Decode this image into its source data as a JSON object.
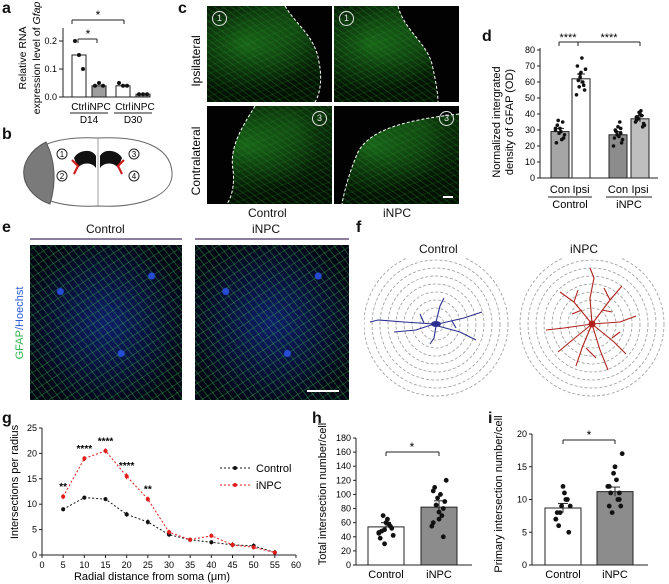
{
  "panel_letters": {
    "a": "a",
    "b": "b",
    "c": "c",
    "d": "d",
    "e": "e",
    "f": "f",
    "g": "g",
    "h": "h",
    "i": "i"
  },
  "panel_a": {
    "ylabel_line1": "Relative RNA",
    "ylabel_line2": "expression level of",
    "ylabel_gene": "Gfap",
    "group_labels": [
      "Ctrl",
      "iNPC",
      "Ctrl",
      "iNPC"
    ],
    "day_labels": [
      "D14",
      "D30"
    ],
    "tick_labels": [
      "0.0",
      "0.1",
      "0.2"
    ],
    "sig_marks": [
      "*",
      "*"
    ],
    "colors": {
      "ctrl": "#ffffff",
      "inpc": "#9e9e9e"
    }
  },
  "panel_b": {
    "region_numbers": [
      "1",
      "2",
      "3",
      "4"
    ]
  },
  "panel_c": {
    "row_labels": [
      "Ipsilateral",
      "Contralateral"
    ],
    "col_labels": [
      "Control",
      "iNPC"
    ],
    "region_numbers": [
      "1",
      "1",
      "3",
      "3"
    ]
  },
  "panel_d": {
    "ylabel_line1": "Normalized intergrated",
    "ylabel_line2": "density of GFAP (OD)",
    "ticks": [
      "0",
      "10",
      "20",
      "30",
      "40",
      "50",
      "60",
      "70",
      "80"
    ],
    "bar_labels": [
      "Con",
      "Ipsi",
      "Con",
      "Ipsi"
    ],
    "group_labels": [
      "Control",
      "iNPC"
    ],
    "sig_marks": [
      "****",
      "****"
    ],
    "colors": {
      "control_con": "#a6a6a6",
      "control_ipsi": "#ffffff",
      "inpc_con": "#8c8c8c",
      "inpc_ipsi": "#bfbfbf"
    }
  },
  "panel_e": {
    "ylabel_gfap": "GFAP",
    "ylabel_hoechst": "/Hoechst",
    "col_labels": [
      "Control",
      "iNPC"
    ],
    "colors": {
      "gfap": "#2fb34a",
      "hoechst": "#2a5bd7"
    }
  },
  "panel_f": {
    "col_labels": [
      "Control",
      "iNPC"
    ],
    "colors": {
      "control": "#2b2f8f",
      "inpc": "#b0221c"
    }
  },
  "panel_g": {
    "ylabel": "Intersections per radius",
    "xlabel": "Radial distance from soma (μm)",
    "legend": [
      "Control",
      "iNPC"
    ],
    "sig_marks": [
      "**",
      "****",
      "****",
      "****",
      "**"
    ],
    "colors": {
      "control": "#111111",
      "inpc": "#e21b1b"
    }
  },
  "panel_h": {
    "ylabel": "Total intersection number/cell",
    "ticks": [
      "0",
      "20",
      "40",
      "60",
      "80",
      "100",
      "120",
      "140",
      "160",
      "180"
    ],
    "categories": [
      "Control",
      "iNPC"
    ],
    "sig_mark": "*",
    "colors": {
      "control": "#ffffff",
      "inpc": "#8c8c8c"
    }
  },
  "panel_i": {
    "ylabel": "Primary intersection number/cell",
    "ticks": [
      "0",
      "5",
      "10",
      "15",
      "20"
    ],
    "categories": [
      "Control",
      "iNPC"
    ],
    "sig_mark": "*",
    "colors": {
      "control": "#ffffff",
      "inpc": "#8c8c8c"
    }
  },
  "chart_data": [
    {
      "type": "bar",
      "categories": [
        "Ctrl D14",
        "iNPC D14",
        "Ctrl D30",
        "iNPC D30"
      ],
      "values": [
        0.15,
        0.04,
        0.04,
        0.01
      ],
      "points": [
        [
          0.2,
          0.15,
          0.1
        ],
        [
          0.04,
          0.05,
          0.04
        ],
        [
          0.05,
          0.04,
          0.04
        ],
        [
          0.01,
          0.01,
          0.01
        ]
      ],
      "ylim": [
        0,
        0.25
      ]
    },
    {
      "type": "bar",
      "categories": [
        "Con",
        "Ipsi",
        "Con",
        "Ipsi"
      ],
      "values": [
        29,
        62,
        27,
        37
      ],
      "errors": [
        2,
        3,
        2,
        2
      ],
      "points": [
        [
          30,
          28,
          35,
          22,
          31,
          25,
          33,
          29,
          27,
          36,
          24,
          31
        ],
        [
          63,
          58,
          70,
          66,
          55,
          61,
          75,
          68,
          57,
          60,
          52,
          65
        ],
        [
          28,
          25,
          32,
          22,
          30,
          26,
          24,
          29,
          35,
          20,
          27,
          31
        ],
        [
          36,
          40,
          34,
          38,
          42,
          33,
          37,
          39,
          35,
          41,
          32,
          38
        ]
      ],
      "ylim": [
        0,
        80
      ]
    },
    {
      "type": "line",
      "x": [
        5,
        10,
        15,
        20,
        25,
        30,
        35,
        40,
        45,
        50,
        55
      ],
      "series": [
        {
          "name": "Control",
          "values": [
            9,
            11.3,
            11,
            8,
            6.5,
            4,
            3,
            2.5,
            2,
            1.8,
            0.5
          ],
          "errors": [
            0.4,
            0.4,
            0.4,
            0.5,
            0.5,
            0.4,
            0.4,
            0.4,
            0.5,
            0.5,
            0.5
          ]
        },
        {
          "name": "iNPC",
          "values": [
            11.5,
            19,
            20.5,
            15.5,
            11,
            4.5,
            3,
            3.8,
            2,
            1.5,
            0.5
          ],
          "errors": [
            0.5,
            0.5,
            0.5,
            0.6,
            0.5,
            0.5,
            0.4,
            0.4,
            0.5,
            0.4,
            0.3
          ]
        }
      ],
      "xlim": [
        0,
        60
      ],
      "ylim": [
        0,
        25
      ],
      "xticks": [
        0,
        5,
        10,
        15,
        20,
        25,
        30,
        35,
        40,
        45,
        50,
        55,
        60
      ],
      "yticks": [
        0,
        5,
        10,
        15,
        20,
        25
      ]
    },
    {
      "type": "bar",
      "categories": [
        "Control",
        "iNPC"
      ],
      "values": [
        54,
        82
      ],
      "errors": [
        6,
        9
      ],
      "points": [
        [
          45,
          50,
          55,
          38,
          60,
          52,
          48,
          65,
          42,
          70,
          58,
          46,
          30
        ],
        [
          40,
          60,
          75,
          90,
          110,
          100,
          120,
          85,
          70,
          55,
          95,
          80,
          105,
          65
        ]
      ],
      "ylim": [
        0,
        180
      ]
    },
    {
      "type": "bar",
      "categories": [
        "Control",
        "iNPC"
      ],
      "values": [
        8.7,
        11.2
      ],
      "errors": [
        0.7,
        0.7
      ],
      "points": [
        [
          7,
          9,
          10,
          8,
          12,
          5,
          6,
          11,
          9,
          8,
          10,
          7
        ],
        [
          10,
          12,
          15,
          9,
          11,
          13,
          17,
          8,
          10,
          12,
          14,
          11,
          9
        ]
      ],
      "ylim": [
        0,
        20
      ]
    }
  ]
}
